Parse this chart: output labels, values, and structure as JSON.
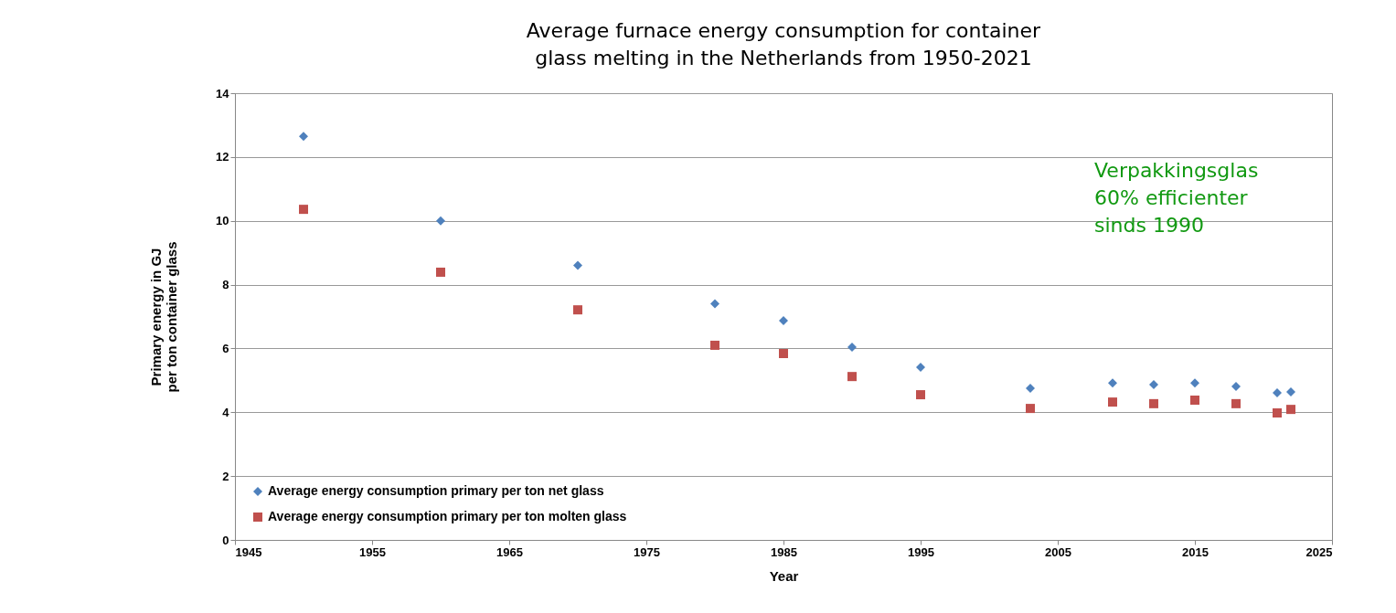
{
  "chart_data": {
    "type": "scatter",
    "title": "Average furnace energy consumption for container glass melting in the Netherlands from 1950-2021",
    "xlabel": "Year",
    "ylabel": "Primary energy in GJ per ton container glass",
    "x": [
      1950,
      1960,
      1970,
      1980,
      1985,
      1990,
      1995,
      2003,
      2009,
      2012,
      2015,
      2018,
      2021,
      2022
    ],
    "series": [
      {
        "name": "Average energy consumption primary per ton net glass",
        "color": "#4f81bd",
        "marker": "diamond",
        "values": [
          12.65,
          10.0,
          8.6,
          7.4,
          6.87,
          6.04,
          5.41,
          4.75,
          4.92,
          4.87,
          4.92,
          4.81,
          4.61,
          4.64
        ]
      },
      {
        "name": "Average energy consumption primary per ton molten glass",
        "color": "#c0504d",
        "marker": "square",
        "values": [
          10.36,
          8.39,
          7.21,
          6.1,
          5.84,
          5.12,
          4.55,
          4.12,
          4.32,
          4.27,
          4.38,
          4.27,
          3.98,
          4.09
        ]
      }
    ],
    "xlim": [
      1945,
      2025
    ],
    "xticks": [
      1945,
      1955,
      1965,
      1975,
      1985,
      1995,
      2005,
      2015,
      2025
    ],
    "ylim": [
      0,
      14
    ],
    "yticks": [
      0,
      2,
      4,
      6,
      8,
      10,
      12,
      14
    ],
    "grid": "y",
    "legend": "bottom left",
    "annotations": [
      "Verpakkingsglas\n60% efficienter\nsinds 1990"
    ]
  }
}
